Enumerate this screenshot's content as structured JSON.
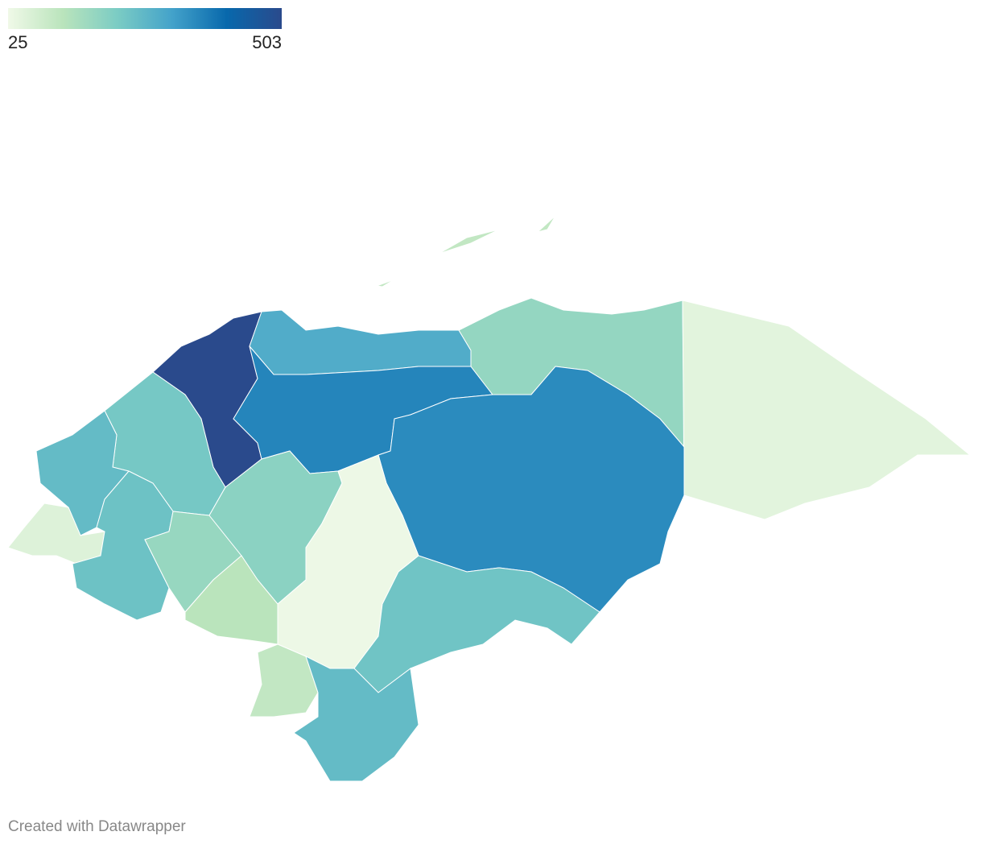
{
  "chart_data": {
    "type": "choropleth",
    "colorscale": {
      "min": 25,
      "max": 503,
      "colors": [
        "#f0f9e8",
        "#bae4bc",
        "#7bccc4",
        "#43a2ca",
        "#0868ac",
        "#2a4a8c"
      ]
    },
    "values": [
      503,
      288,
      360,
      178,
      49,
      350,
      225,
      255,
      58,
      240,
      173,
      192,
      120,
      30,
      235,
      106,
      255,
      106
    ],
    "credit": "Created with Datawrapper"
  }
}
